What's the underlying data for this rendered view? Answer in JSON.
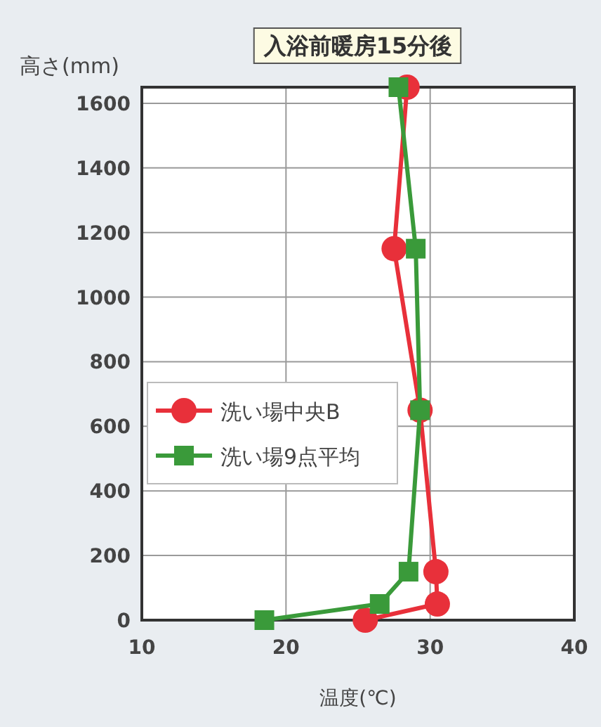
{
  "chart_data": {
    "type": "line",
    "title": "入浴前暖房15分後",
    "xlabel": "温度(℃)",
    "ylabel": "高さ(mm)",
    "xlim": [
      10,
      40
    ],
    "xticks": [
      10,
      20,
      30,
      40
    ],
    "ylim": [
      0,
      1650
    ],
    "yticks": [
      0,
      200,
      400,
      600,
      800,
      1000,
      1200,
      1400,
      1600
    ],
    "grid": true,
    "legend": "left",
    "line_style": "solid",
    "series": [
      {
        "name": "洗い場中央B",
        "color": "#e8303a",
        "marker": "circle",
        "x": [
          25.5,
          30.5,
          30.4,
          29.3,
          27.5,
          28.4
        ],
        "values": [
          0,
          50,
          150,
          650,
          1150,
          1650
        ]
      },
      {
        "name": "洗い場9点平均",
        "color": "#3a9a3a",
        "marker": "square",
        "x": [
          18.5,
          26.5,
          28.5,
          29.3,
          29.0,
          27.8
        ],
        "values": [
          0,
          50,
          150,
          650,
          1150,
          1650
        ]
      }
    ]
  }
}
